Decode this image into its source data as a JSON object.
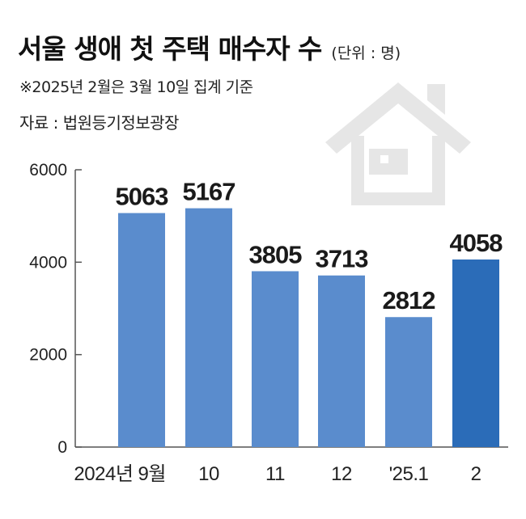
{
  "header": {
    "title": "서울 생애 첫 주택 매수자 수",
    "unit": "(단위 : 명)",
    "note": "※2025년 2월은 3월 10일 집계 기준",
    "source": "자료 : 법원등기정보광장"
  },
  "colors": {
    "bar": "#5a8ccd",
    "bar_highlight": "#2b6cb8",
    "house_icon": "#e6e6e6",
    "axis": "#555555"
  },
  "icons": {
    "background": "house-icon"
  },
  "chart_data": {
    "type": "bar",
    "categories": [
      "2024년 9월",
      "10",
      "11",
      "12",
      "'25.1",
      "2"
    ],
    "values": [
      5063,
      5167,
      3805,
      3713,
      2812,
      4058
    ],
    "data_labels": [
      "5063",
      "5167",
      "3805",
      "3713",
      "2812",
      "4058"
    ],
    "y_ticks": [
      0,
      2000,
      4000,
      6000
    ],
    "ylim": [
      0,
      6000
    ],
    "highlight_index": 5,
    "grid": false
  }
}
